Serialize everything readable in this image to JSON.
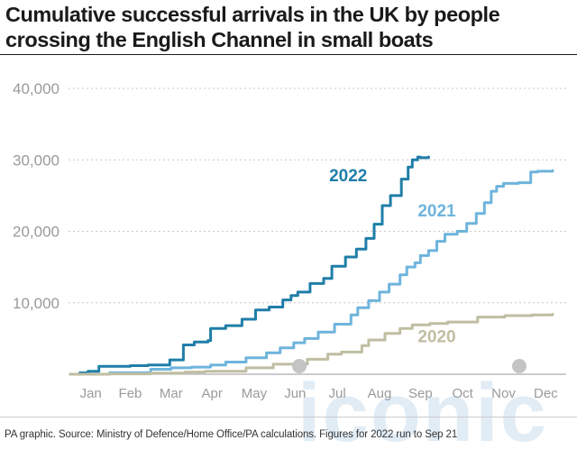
{
  "title": "Cumulative successful arrivals in the UK by people crossing the English Channel in small boats",
  "source": "PA graphic. Source: Ministry of Defence/Home Office/PA calculations. Figures for 2022 run to Sep 21",
  "watermark": "iconic",
  "chart_data": {
    "type": "line",
    "x_unit": "day of year",
    "xlim": [
      1,
      365
    ],
    "ylim": [
      0,
      40000
    ],
    "yticks": [
      0,
      10000,
      20000,
      30000,
      40000
    ],
    "ytick_labels": [
      "",
      "10,000",
      "20,000",
      "30,000",
      "40,000"
    ],
    "month_labels": [
      "Jan",
      "Feb",
      "Mar",
      "Apr",
      "May",
      "Jun",
      "Jul",
      "Aug",
      "Sep",
      "Oct",
      "Nov",
      "Dec"
    ],
    "month_midpoints": [
      16,
      45,
      75,
      105,
      136,
      166,
      197,
      228,
      258,
      289,
      319,
      350
    ],
    "grid": "horizontal dotted",
    "legend": "inline labels",
    "series": [
      {
        "name": "2022",
        "color": "#1f7ea8",
        "label_at": [
          205,
          27000
        ],
        "points": [
          [
            1,
            0
          ],
          [
            8,
            200
          ],
          [
            14,
            400
          ],
          [
            22,
            1100
          ],
          [
            45,
            1200
          ],
          [
            58,
            1300
          ],
          [
            74,
            2000
          ],
          [
            84,
            4100
          ],
          [
            92,
            4500
          ],
          [
            102,
            4700
          ],
          [
            104,
            6400
          ],
          [
            115,
            6800
          ],
          [
            127,
            7700
          ],
          [
            137,
            9000
          ],
          [
            147,
            9400
          ],
          [
            157,
            10400
          ],
          [
            163,
            11000
          ],
          [
            168,
            11500
          ],
          [
            177,
            12700
          ],
          [
            187,
            13400
          ],
          [
            193,
            15100
          ],
          [
            203,
            16400
          ],
          [
            211,
            17500
          ],
          [
            218,
            19000
          ],
          [
            224,
            21000
          ],
          [
            230,
            23600
          ],
          [
            236,
            25000
          ],
          [
            244,
            27300
          ],
          [
            249,
            29000
          ],
          [
            252,
            30000
          ],
          [
            256,
            30400
          ],
          [
            258,
            30300
          ],
          [
            264,
            30400
          ]
        ]
      },
      {
        "name": "2021",
        "color": "#6eb4dc",
        "label_at": [
          270,
          22100
        ],
        "points": [
          [
            1,
            0
          ],
          [
            30,
            200
          ],
          [
            60,
            700
          ],
          [
            75,
            900
          ],
          [
            90,
            1000
          ],
          [
            104,
            1300
          ],
          [
            115,
            1700
          ],
          [
            130,
            2300
          ],
          [
            145,
            3000
          ],
          [
            155,
            3700
          ],
          [
            165,
            4400
          ],
          [
            173,
            5000
          ],
          [
            183,
            5900
          ],
          [
            195,
            7000
          ],
          [
            207,
            8300
          ],
          [
            212,
            9300
          ],
          [
            220,
            10300
          ],
          [
            228,
            11500
          ],
          [
            235,
            12600
          ],
          [
            243,
            13900
          ],
          [
            248,
            15000
          ],
          [
            254,
            15600
          ],
          [
            258,
            16600
          ],
          [
            264,
            17300
          ],
          [
            270,
            18600
          ],
          [
            276,
            19600
          ],
          [
            285,
            20000
          ],
          [
            292,
            21100
          ],
          [
            299,
            22500
          ],
          [
            305,
            24000
          ],
          [
            310,
            25600
          ],
          [
            314,
            26300
          ],
          [
            319,
            26700
          ],
          [
            330,
            26800
          ],
          [
            339,
            28300
          ],
          [
            344,
            28400
          ],
          [
            355,
            28500
          ]
        ]
      },
      {
        "name": "2020",
        "color": "#bfbea2",
        "label_at": [
          270,
          4500
        ],
        "points": [
          [
            1,
            0
          ],
          [
            30,
            50
          ],
          [
            60,
            150
          ],
          [
            85,
            300
          ],
          [
            100,
            400
          ],
          [
            130,
            900
          ],
          [
            150,
            1400
          ],
          [
            175,
            2100
          ],
          [
            190,
            2800
          ],
          [
            200,
            3100
          ],
          [
            215,
            4000
          ],
          [
            220,
            4800
          ],
          [
            232,
            5700
          ],
          [
            243,
            6400
          ],
          [
            252,
            6900
          ],
          [
            265,
            7100
          ],
          [
            278,
            7300
          ],
          [
            300,
            8000
          ],
          [
            320,
            8200
          ],
          [
            340,
            8300
          ],
          [
            355,
            8400
          ]
        ]
      }
    ]
  }
}
